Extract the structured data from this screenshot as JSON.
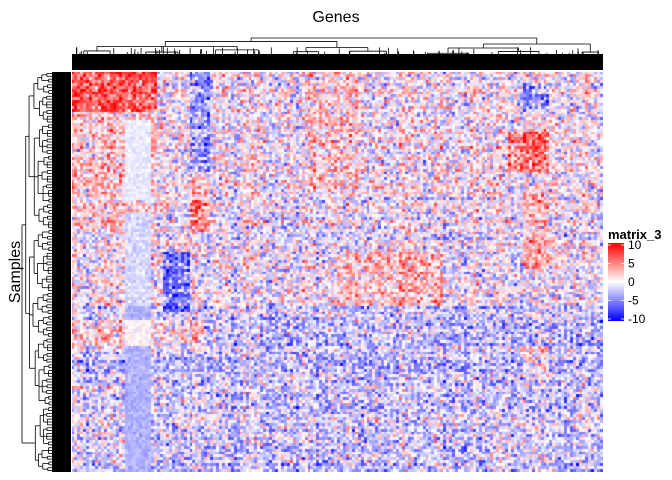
{
  "chart_data": {
    "type": "heatmap",
    "title": "Genes",
    "xlabel": "Genes",
    "ylabel": "Samples",
    "legend": {
      "title": "matrix_3",
      "ticks": [
        10,
        5,
        0,
        -5,
        -10
      ],
      "range": [
        -10,
        10
      ],
      "colors": {
        "low": "#0000ff",
        "mid": "#ffffff",
        "high": "#ff0000"
      },
      "placement": "right"
    },
    "row_dendrogram": true,
    "column_dendrogram": true,
    "column_labels_visible": false,
    "row_labels_visible": false
  }
}
